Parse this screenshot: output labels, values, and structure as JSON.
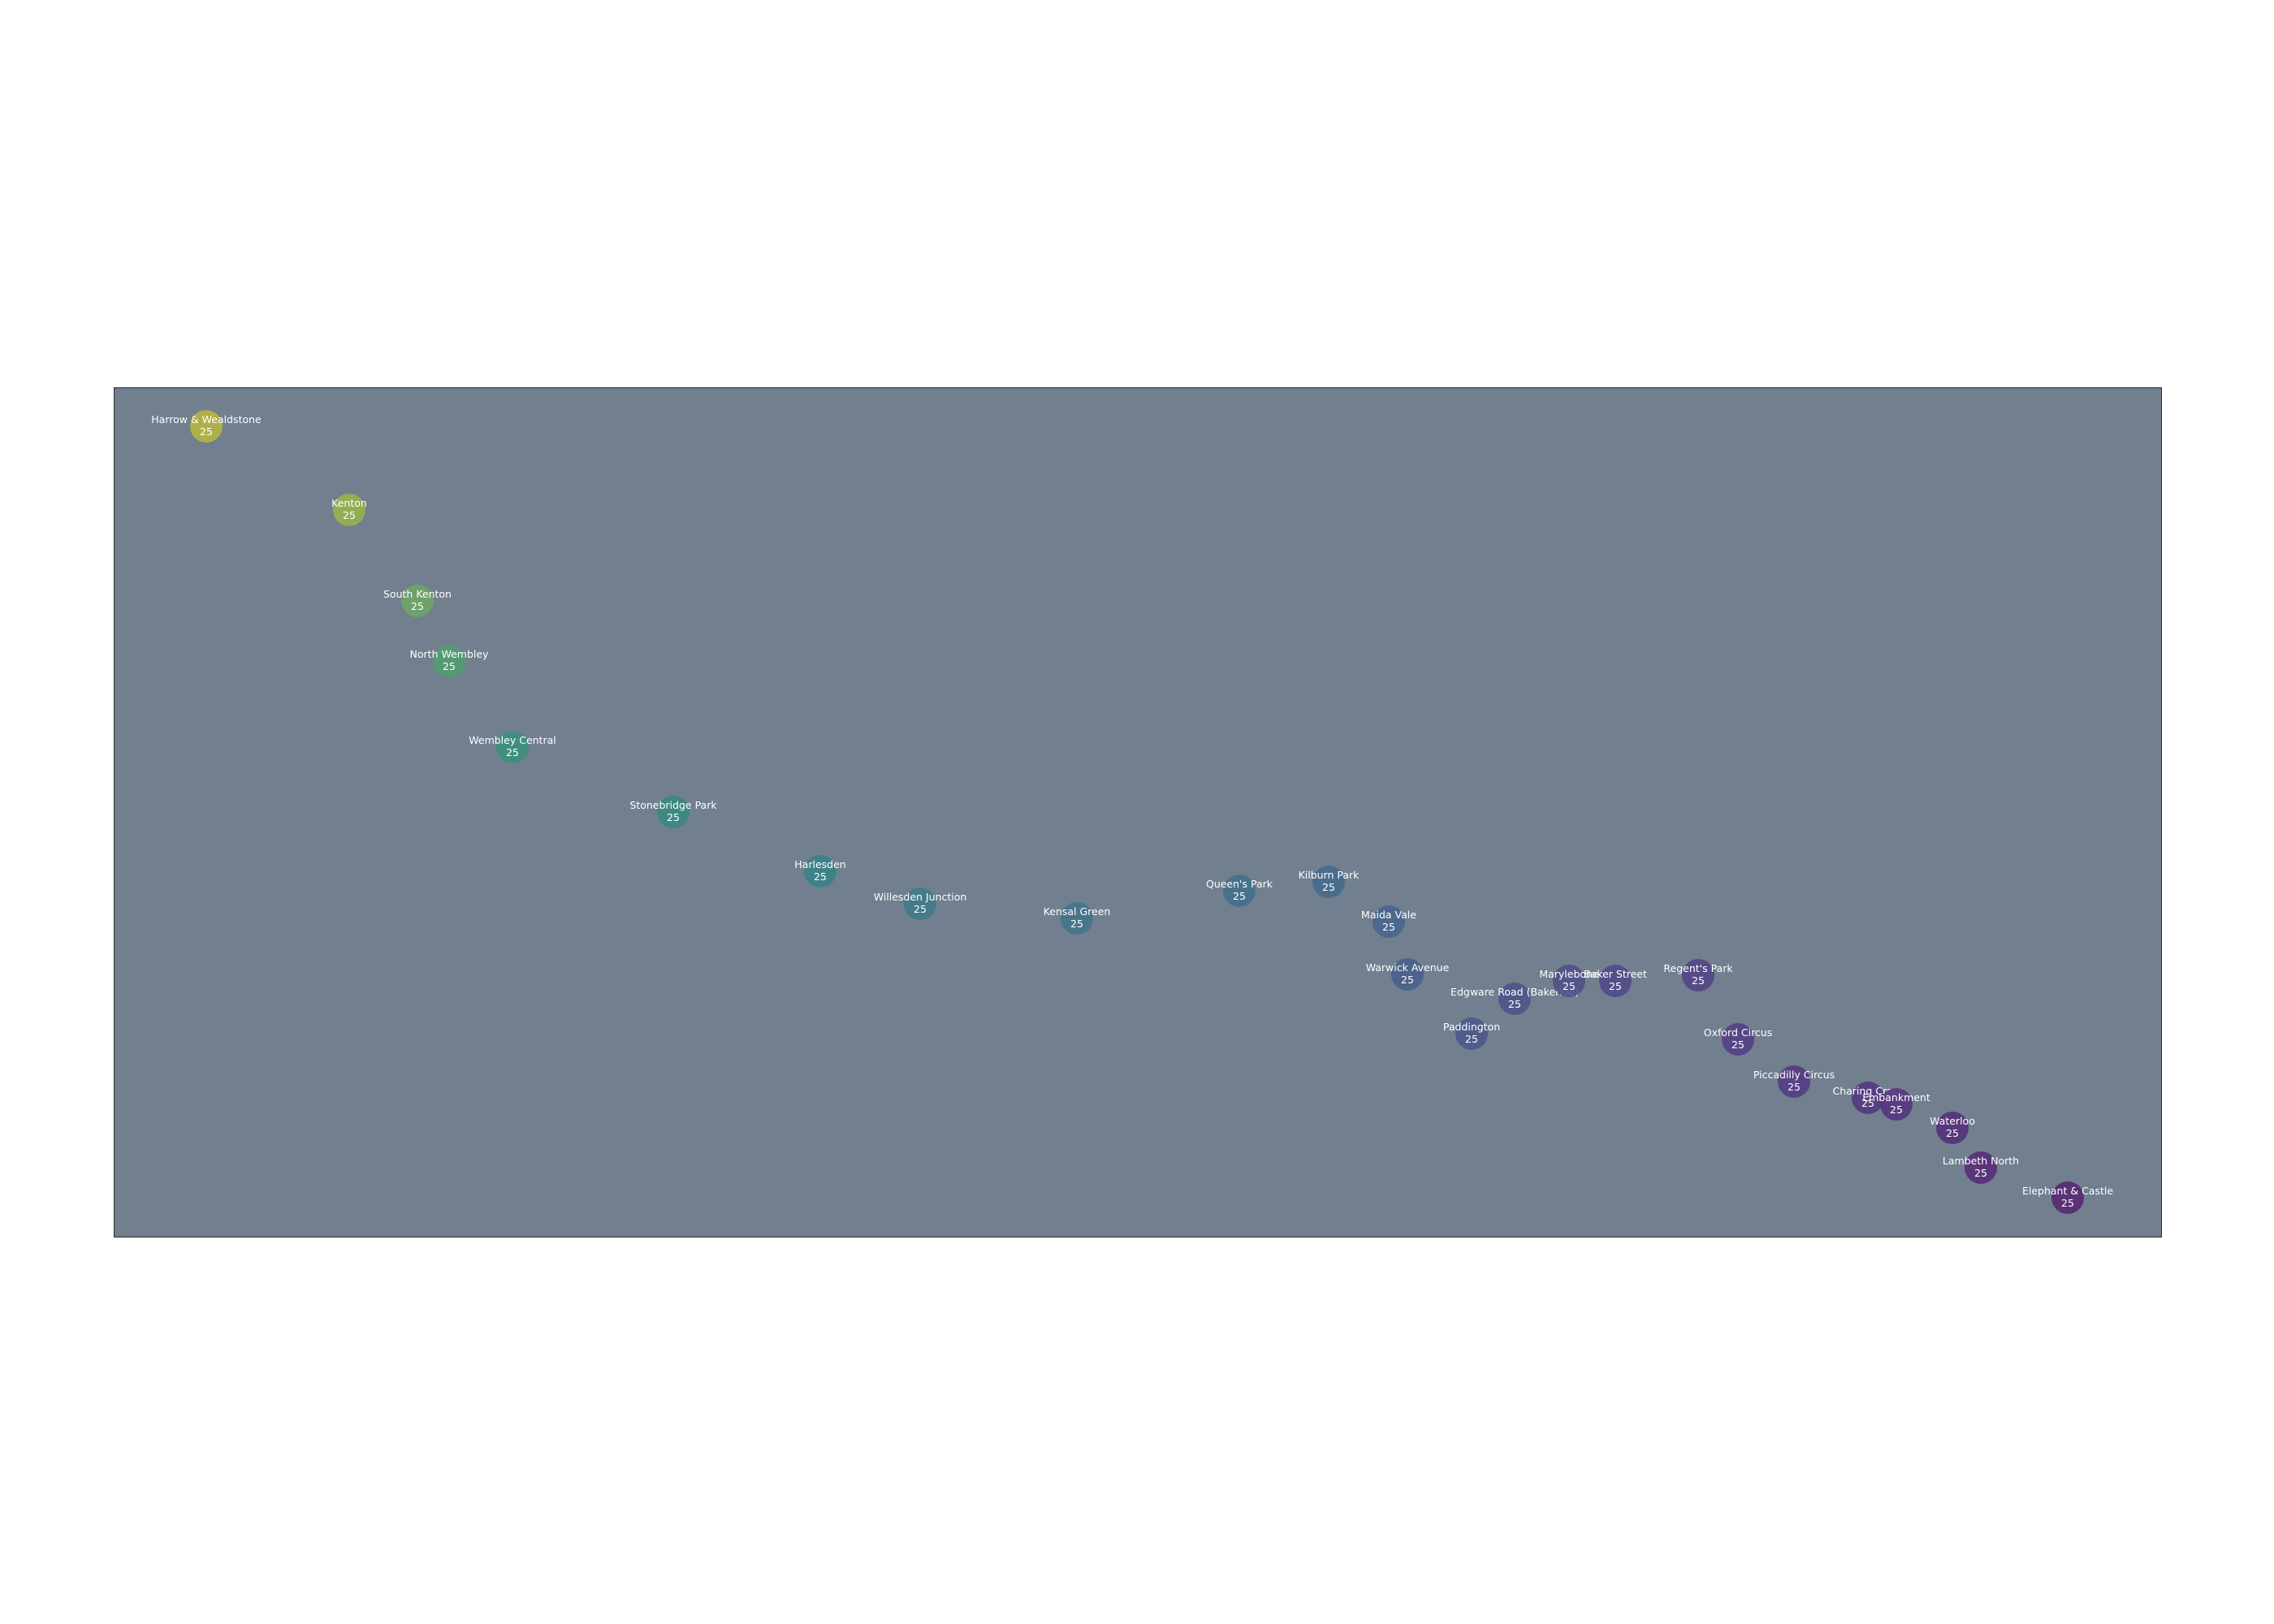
{
  "map": {
    "stations": [
      {
        "name": "Harrow & Wealdstone",
        "value": "25",
        "color": "#b6b53f"
      },
      {
        "name": "Kenton",
        "value": "25",
        "color": "#98b34d"
      },
      {
        "name": "South Kenton",
        "value": "25",
        "color": "#6fa566"
      },
      {
        "name": "North Wembley",
        "value": "25",
        "color": "#519d6f"
      },
      {
        "name": "Wembley Central",
        "value": "25",
        "color": "#3a917a"
      },
      {
        "name": "Stonebridge Park",
        "value": "25",
        "color": "#378a80"
      },
      {
        "name": "Harlesden",
        "value": "25",
        "color": "#3b8288"
      },
      {
        "name": "Willesden Junction",
        "value": "25",
        "color": "#3f7c89"
      },
      {
        "name": "Kensal Green",
        "value": "25",
        "color": "#42768b"
      },
      {
        "name": "Queen's Park",
        "value": "25",
        "color": "#44718c"
      },
      {
        "name": "Kilburn Park",
        "value": "25",
        "color": "#466b8c"
      },
      {
        "name": "Maida Vale",
        "value": "25",
        "color": "#48668c"
      },
      {
        "name": "Warwick Avenue",
        "value": "25",
        "color": "#4a608b"
      },
      {
        "name": "Paddington",
        "value": "25",
        "color": "#4c5a8a"
      },
      {
        "name": "Edgware Road (Bakerloo)",
        "value": "25",
        "color": "#4e5589"
      },
      {
        "name": "Marylebone",
        "value": "25",
        "color": "#505089"
      },
      {
        "name": "Baker Street",
        "value": "25",
        "color": "#504b88"
      },
      {
        "name": "Regent's Park",
        "value": "25",
        "color": "#514686"
      },
      {
        "name": "Oxford Circus",
        "value": "25",
        "color": "#524185"
      },
      {
        "name": "Piccadilly Circus",
        "value": "25",
        "color": "#533c83"
      },
      {
        "name": "Charing Cross",
        "value": "25",
        "color": "#543880"
      },
      {
        "name": "Embankment",
        "value": "25",
        "color": "#55357e"
      },
      {
        "name": "Waterloo",
        "value": "25",
        "color": "#55317b"
      },
      {
        "name": "Lambeth North",
        "value": "25",
        "color": "#562d78"
      },
      {
        "name": "Elephant & Castle",
        "value": "25",
        "color": "#572a73"
      }
    ]
  }
}
